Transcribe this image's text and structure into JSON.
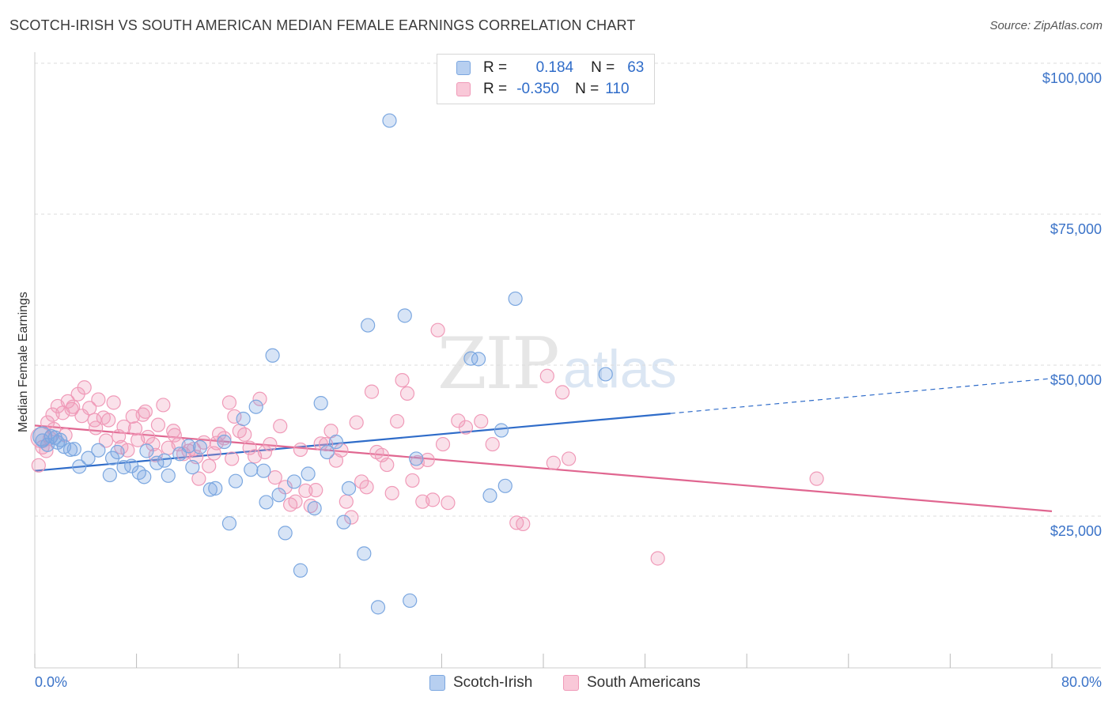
{
  "header": {
    "title": "SCOTCH-IRISH VS SOUTH AMERICAN MEDIAN FEMALE EARNINGS CORRELATION CHART",
    "source": "Source: ZipAtlas.com"
  },
  "watermark": {
    "zip": "ZIP",
    "atlas": "atlas"
  },
  "legend": {
    "rows": [
      {
        "r_label": "R =",
        "r_value": "0.184",
        "n_label": "N =",
        "n_value": "63",
        "color": "#7ba7e0"
      },
      {
        "r_label": "R =",
        "r_value": "-0.350",
        "n_label": "N =",
        "n_value": "110",
        "color": "#f09ab8"
      }
    ]
  },
  "bottom_legend": {
    "series1": "Scotch-Irish",
    "series2": "South Americans"
  },
  "chart_data": {
    "type": "scatter",
    "title": "SCOTCH-IRISH VS SOUTH AMERICAN MEDIAN FEMALE EARNINGS CORRELATION CHART",
    "xlabel": "",
    "ylabel": "Median Female Earnings",
    "xlim": [
      0,
      80
    ],
    "ylim": [
      0,
      105000
    ],
    "x_tick_labels": [
      "0.0%",
      "80.0%"
    ],
    "y_ticks": [
      25000,
      50000,
      75000,
      100000
    ],
    "y_tick_labels": [
      "$25,000",
      "$50,000",
      "$75,000",
      "$100,000"
    ],
    "grid": true,
    "legend_position": "top-center",
    "colors": {
      "scotch_irish": "#7ba7e0",
      "scotch_irish_line": "#2f6cc9",
      "south_americans": "#f09ab8",
      "south_americans_line": "#e06690"
    },
    "series": [
      {
        "name": "Scotch-Irish",
        "trend": {
          "x": [
            0,
            50
          ],
          "y": [
            32500,
            42000
          ],
          "dashed_to": [
            80,
            47800
          ]
        },
        "points": [
          [
            0.6,
            37500
          ],
          [
            1.0,
            36800
          ],
          [
            1.3,
            38200
          ],
          [
            1.8,
            37200
          ],
          [
            2.3,
            36500
          ],
          [
            2.8,
            36000
          ],
          [
            3.5,
            33200
          ],
          [
            4.2,
            34600
          ],
          [
            5.0,
            35900
          ],
          [
            5.9,
            31800
          ],
          [
            6.5,
            35600
          ],
          [
            7.0,
            33100
          ],
          [
            7.6,
            33300
          ],
          [
            8.2,
            32200
          ],
          [
            8.6,
            31500
          ],
          [
            8.8,
            35800
          ],
          [
            9.6,
            33800
          ],
          [
            10.2,
            34200
          ],
          [
            10.5,
            31700
          ],
          [
            11.4,
            35300
          ],
          [
            12.1,
            36600
          ],
          [
            12.4,
            33100
          ],
          [
            13.0,
            36400
          ],
          [
            13.8,
            29400
          ],
          [
            14.2,
            29600
          ],
          [
            14.9,
            37300
          ],
          [
            15.3,
            23800
          ],
          [
            15.8,
            30800
          ],
          [
            16.4,
            41100
          ],
          [
            17.0,
            32700
          ],
          [
            17.4,
            43100
          ],
          [
            18.0,
            32500
          ],
          [
            18.2,
            27300
          ],
          [
            18.7,
            51600
          ],
          [
            19.2,
            28500
          ],
          [
            19.7,
            22200
          ],
          [
            20.4,
            30700
          ],
          [
            20.9,
            16000
          ],
          [
            21.5,
            32000
          ],
          [
            22.0,
            26300
          ],
          [
            22.5,
            43700
          ],
          [
            23.0,
            35600
          ],
          [
            23.7,
            37300
          ],
          [
            24.3,
            24000
          ],
          [
            24.7,
            29600
          ],
          [
            25.9,
            18800
          ],
          [
            26.2,
            56600
          ],
          [
            27.0,
            9900
          ],
          [
            27.9,
            90500
          ],
          [
            29.1,
            58200
          ],
          [
            29.5,
            11000
          ],
          [
            30.0,
            34500
          ],
          [
            34.3,
            51100
          ],
          [
            34.9,
            51000
          ],
          [
            35.8,
            28400
          ],
          [
            36.7,
            39200
          ],
          [
            37.0,
            30000
          ],
          [
            37.8,
            61000
          ],
          [
            44.9,
            48500
          ],
          [
            1.6,
            38000
          ],
          [
            2.0,
            37600
          ],
          [
            3.1,
            36100
          ],
          [
            6.1,
            34600
          ]
        ]
      },
      {
        "name": "South Americans",
        "trend": {
          "x": [
            0,
            80
          ],
          "y": [
            40000,
            25800
          ]
        },
        "points": [
          [
            0.3,
            33400
          ],
          [
            0.6,
            36400
          ],
          [
            1.0,
            40500
          ],
          [
            1.4,
            41800
          ],
          [
            1.8,
            43200
          ],
          [
            2.2,
            42100
          ],
          [
            2.6,
            44000
          ],
          [
            3.0,
            43100
          ],
          [
            3.4,
            45200
          ],
          [
            3.9,
            46300
          ],
          [
            4.3,
            42900
          ],
          [
            4.7,
            40900
          ],
          [
            5.0,
            44300
          ],
          [
            5.4,
            41300
          ],
          [
            5.8,
            40900
          ],
          [
            6.2,
            43800
          ],
          [
            6.6,
            38200
          ],
          [
            7.0,
            39800
          ],
          [
            7.3,
            35900
          ],
          [
            7.7,
            41500
          ],
          [
            8.1,
            37600
          ],
          [
            8.5,
            41800
          ],
          [
            8.9,
            38100
          ],
          [
            9.3,
            36900
          ],
          [
            9.7,
            40100
          ],
          [
            10.1,
            43400
          ],
          [
            10.5,
            36300
          ],
          [
            10.9,
            39100
          ],
          [
            11.3,
            36900
          ],
          [
            11.7,
            35300
          ],
          [
            12.1,
            35800
          ],
          [
            12.5,
            36100
          ],
          [
            12.9,
            31200
          ],
          [
            13.3,
            37200
          ],
          [
            13.7,
            33300
          ],
          [
            14.1,
            35400
          ],
          [
            14.5,
            38600
          ],
          [
            14.9,
            37900
          ],
          [
            15.3,
            43800
          ],
          [
            15.7,
            41500
          ],
          [
            16.1,
            39100
          ],
          [
            16.5,
            38500
          ],
          [
            16.9,
            36300
          ],
          [
            17.3,
            34900
          ],
          [
            17.7,
            44400
          ],
          [
            18.1,
            35600
          ],
          [
            18.5,
            36900
          ],
          [
            18.9,
            31400
          ],
          [
            19.3,
            39900
          ],
          [
            19.7,
            29800
          ],
          [
            20.1,
            26900
          ],
          [
            20.5,
            27400
          ],
          [
            20.9,
            36000
          ],
          [
            21.3,
            29200
          ],
          [
            21.7,
            26700
          ],
          [
            22.1,
            29300
          ],
          [
            22.5,
            37000
          ],
          [
            22.9,
            36900
          ],
          [
            23.3,
            39100
          ],
          [
            23.7,
            34200
          ],
          [
            24.1,
            35900
          ],
          [
            24.5,
            27400
          ],
          [
            24.9,
            24800
          ],
          [
            25.3,
            40500
          ],
          [
            25.7,
            30700
          ],
          [
            26.1,
            29800
          ],
          [
            26.5,
            45600
          ],
          [
            26.9,
            35600
          ],
          [
            27.3,
            35100
          ],
          [
            27.7,
            33500
          ],
          [
            28.1,
            28800
          ],
          [
            28.5,
            40700
          ],
          [
            28.9,
            47500
          ],
          [
            29.3,
            45300
          ],
          [
            29.7,
            30900
          ],
          [
            30.1,
            33900
          ],
          [
            30.5,
            27400
          ],
          [
            30.9,
            34300
          ],
          [
            31.3,
            27700
          ],
          [
            31.7,
            55800
          ],
          [
            32.1,
            36900
          ],
          [
            32.5,
            27200
          ],
          [
            33.3,
            40800
          ],
          [
            33.9,
            39700
          ],
          [
            35.1,
            40700
          ],
          [
            36.0,
            36900
          ],
          [
            37.9,
            23900
          ],
          [
            38.4,
            23700
          ],
          [
            40.3,
            48200
          ],
          [
            40.8,
            33800
          ],
          [
            41.5,
            45500
          ],
          [
            42.0,
            34500
          ],
          [
            49.0,
            18000
          ],
          [
            61.5,
            31200
          ],
          [
            0.9,
            35800
          ],
          [
            1.2,
            37900
          ],
          [
            1.5,
            39400
          ],
          [
            2.4,
            38400
          ],
          [
            2.9,
            42700
          ],
          [
            3.7,
            41600
          ],
          [
            4.8,
            39600
          ],
          [
            5.6,
            37500
          ],
          [
            6.8,
            36400
          ],
          [
            7.9,
            39500
          ],
          [
            8.7,
            42300
          ],
          [
            9.5,
            35100
          ],
          [
            11.0,
            38400
          ],
          [
            12.7,
            34800
          ],
          [
            14.3,
            37100
          ],
          [
            15.5,
            34500
          ]
        ]
      }
    ]
  }
}
